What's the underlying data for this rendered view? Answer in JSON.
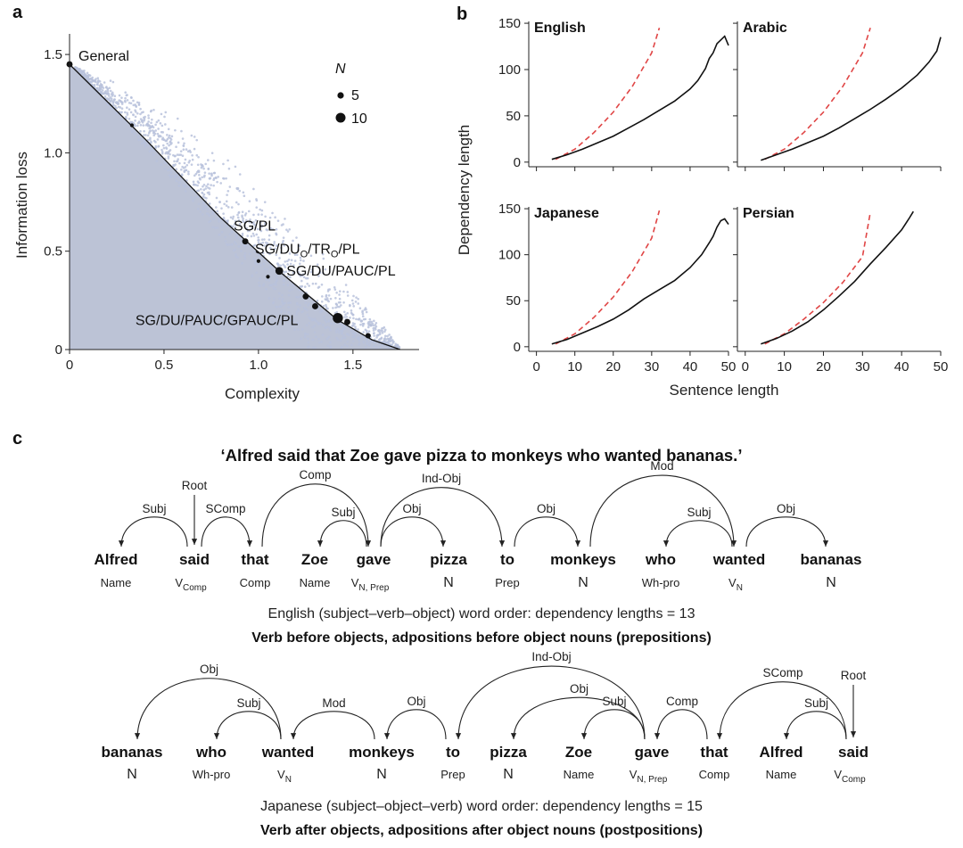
{
  "panel_labels": {
    "a": "a",
    "b": "b",
    "c": "c"
  },
  "colors": {
    "frontier_fill": "#bcc3d6",
    "scatter": "#b8c2dc",
    "line": "#111111",
    "dashed": "#e04646"
  },
  "chart_data": [
    {
      "id": "panel-a",
      "type": "scatter",
      "xlabel": "Complexity",
      "ylabel": "Information loss",
      "xlim": [
        0,
        1.85
      ],
      "ylim": [
        0,
        1.65
      ],
      "xticks": [
        0,
        0.5,
        1,
        1.5
      ],
      "xtick_labels": [
        "0",
        "0.5",
        "1.0",
        "1.5"
      ],
      "yticks": [
        0,
        0.5,
        1,
        1.5
      ],
      "ytick_labels": [
        "0",
        "0.5",
        "1.0",
        "1.5"
      ],
      "frontier": [
        [
          0,
          1.45
        ],
        [
          0.4,
          1.07
        ],
        [
          0.8,
          0.67
        ],
        [
          1.12,
          0.39
        ],
        [
          1.42,
          0.15
        ],
        [
          1.6,
          0.05
        ],
        [
          1.75,
          0.0
        ]
      ],
      "optimal_points": [
        {
          "x": 0,
          "y": 1.45,
          "n": 5
        },
        {
          "x": 0.33,
          "y": 1.14,
          "n": 2
        },
        {
          "x": 0.93,
          "y": 0.55,
          "n": 5
        },
        {
          "x": 1.0,
          "y": 0.45,
          "n": 2
        },
        {
          "x": 1.05,
          "y": 0.37,
          "n": 2
        },
        {
          "x": 1.11,
          "y": 0.4,
          "n": 7
        },
        {
          "x": 1.25,
          "y": 0.27,
          "n": 5
        },
        {
          "x": 1.3,
          "y": 0.22,
          "n": 5
        },
        {
          "x": 1.42,
          "y": 0.16,
          "n": 10
        },
        {
          "x": 1.47,
          "y": 0.14,
          "n": 5
        },
        {
          "x": 1.58,
          "y": 0.07,
          "n": 4
        }
      ],
      "annotations": [
        {
          "text": "General",
          "x": 0,
          "y": 1.45
        },
        {
          "text": "SG/PL",
          "x": 0.93,
          "y": 0.55
        },
        {
          "text": "SG/DUO/TRO/PL",
          "x": 1.0,
          "y": 0.45
        },
        {
          "text": "SG/DU/PAUC/PL",
          "x": 1.11,
          "y": 0.4
        },
        {
          "text": "SG/DU/PAUC/GPAUC/PL",
          "x": 1.42,
          "y": 0.16
        }
      ],
      "legend": {
        "title": "N",
        "entries": [
          {
            "label": "5",
            "n": 5
          },
          {
            "label": "10",
            "n": 10
          }
        ],
        "placement": "top-right"
      }
    },
    {
      "id": "panel-b",
      "type": "line",
      "xlabel": "Sentence length",
      "ylabel": "Dependency length",
      "xlim": [
        -2,
        50
      ],
      "ylim": [
        -5,
        152
      ],
      "xticks": [
        0,
        10,
        20,
        30,
        40,
        50
      ],
      "yticks": [
        0,
        50,
        100,
        150
      ],
      "panels": [
        {
          "title": "English",
          "observed": [
            [
              4,
              3
            ],
            [
              8,
              8
            ],
            [
              12,
              14
            ],
            [
              16,
              21
            ],
            [
              20,
              28
            ],
            [
              24,
              37
            ],
            [
              28,
              46
            ],
            [
              32,
              56
            ],
            [
              36,
              66
            ],
            [
              40,
              79
            ],
            [
              42,
              88
            ],
            [
              44,
              101
            ],
            [
              45,
              112
            ],
            [
              46,
              118
            ],
            [
              47,
              128
            ],
            [
              48,
              132
            ],
            [
              49,
              136
            ],
            [
              50,
              126
            ]
          ],
          "baseline": [
            [
              5,
              3
            ],
            [
              10,
              14
            ],
            [
              15,
              32
            ],
            [
              20,
              54
            ],
            [
              25,
              82
            ],
            [
              30,
              118
            ],
            [
              32,
              145
            ]
          ]
        },
        {
          "title": "Arabic",
          "observed": [
            [
              4,
              2
            ],
            [
              8,
              8
            ],
            [
              12,
              14
            ],
            [
              16,
              21
            ],
            [
              20,
              28
            ],
            [
              24,
              37
            ],
            [
              28,
              47
            ],
            [
              32,
              57
            ],
            [
              36,
              68
            ],
            [
              40,
              80
            ],
            [
              44,
              94
            ],
            [
              47,
              108
            ],
            [
              49,
              120
            ],
            [
              50,
              135
            ]
          ],
          "baseline": [
            [
              5,
              3
            ],
            [
              10,
              14
            ],
            [
              15,
              32
            ],
            [
              20,
              54
            ],
            [
              25,
              82
            ],
            [
              30,
              118
            ],
            [
              32,
              145
            ]
          ]
        },
        {
          "title": "Japanese",
          "observed": [
            [
              4,
              3
            ],
            [
              8,
              8
            ],
            [
              12,
              15
            ],
            [
              16,
              22
            ],
            [
              20,
              30
            ],
            [
              24,
              40
            ],
            [
              28,
              52
            ],
            [
              32,
              62
            ],
            [
              36,
              72
            ],
            [
              40,
              86
            ],
            [
              43,
              100
            ],
            [
              45,
              113
            ],
            [
              46,
              120
            ],
            [
              47,
              130
            ],
            [
              48,
              137
            ],
            [
              49,
              139
            ],
            [
              50,
              133
            ]
          ],
          "baseline": [
            [
              5,
              3
            ],
            [
              10,
              14
            ],
            [
              15,
              32
            ],
            [
              20,
              54
            ],
            [
              25,
              82
            ],
            [
              30,
              118
            ],
            [
              32,
              148
            ]
          ]
        },
        {
          "title": "Persian",
          "observed": [
            [
              4,
              3
            ],
            [
              8,
              9
            ],
            [
              12,
              17
            ],
            [
              16,
              27
            ],
            [
              20,
              40
            ],
            [
              24,
              55
            ],
            [
              28,
              71
            ],
            [
              32,
              90
            ],
            [
              36,
              108
            ],
            [
              40,
              127
            ],
            [
              42,
              140
            ],
            [
              43,
              147
            ]
          ],
          "baseline": [
            [
              5,
              3
            ],
            [
              10,
              14
            ],
            [
              15,
              30
            ],
            [
              20,
              48
            ],
            [
              25,
              70
            ],
            [
              30,
              98
            ],
            [
              32,
              146
            ]
          ]
        }
      ]
    }
  ],
  "panel_c": {
    "sentence": "‘Alfred said that Zoe gave pizza to monkeys who wanted bananas.’",
    "english": {
      "words": [
        {
          "word": "Alfred",
          "pos": "Name",
          "sub": ""
        },
        {
          "word": "said",
          "pos": "V",
          "sub": "Comp"
        },
        {
          "word": "that",
          "pos": "Comp",
          "sub": ""
        },
        {
          "word": "Zoe",
          "pos": "Name",
          "sub": ""
        },
        {
          "word": "gave",
          "pos": "V",
          "sub": "N, Prep"
        },
        {
          "word": "pizza",
          "pos": "N",
          "sub": ""
        },
        {
          "word": "to",
          "pos": "Prep",
          "sub": ""
        },
        {
          "word": "monkeys",
          "pos": "N",
          "sub": ""
        },
        {
          "word": "who",
          "pos": "Wh-pro",
          "sub": ""
        },
        {
          "word": "wanted",
          "pos": "V",
          "sub": "N"
        },
        {
          "word": "bananas",
          "pos": "N",
          "sub": ""
        }
      ],
      "arcs": [
        {
          "label": "Subj",
          "from": 1,
          "to": 0
        },
        {
          "label": "SComp",
          "from": 1,
          "to": 2
        },
        {
          "label": "Comp",
          "from": 2,
          "to": 4
        },
        {
          "label": "Subj",
          "from": 4,
          "to": 3
        },
        {
          "label": "Ind-Obj",
          "from": 4,
          "to": 6
        },
        {
          "label": "Obj",
          "from": 4,
          "to": 5
        },
        {
          "label": "Obj",
          "from": 6,
          "to": 7
        },
        {
          "label": "Mod",
          "from": 7,
          "to": 9
        },
        {
          "label": "Subj",
          "from": 9,
          "to": 8
        },
        {
          "label": "Obj",
          "from": 9,
          "to": 10
        }
      ],
      "root": {
        "label": "Root",
        "word": 1
      },
      "caption": "English (subject–verb–object) word order: dependency lengths = 13",
      "caption_bold": "Verb before objects, adpositions before object nouns (prepositions)"
    },
    "japanese": {
      "words": [
        {
          "word": "bananas",
          "pos": "N",
          "sub": ""
        },
        {
          "word": "who",
          "pos": "Wh-pro",
          "sub": ""
        },
        {
          "word": "wanted",
          "pos": "V",
          "sub": "N"
        },
        {
          "word": "monkeys",
          "pos": "N",
          "sub": ""
        },
        {
          "word": "to",
          "pos": "Prep",
          "sub": ""
        },
        {
          "word": "pizza",
          "pos": "N",
          "sub": ""
        },
        {
          "word": "Zoe",
          "pos": "Name",
          "sub": ""
        },
        {
          "word": "gave",
          "pos": "V",
          "sub": "N, Prep"
        },
        {
          "word": "that",
          "pos": "Comp",
          "sub": ""
        },
        {
          "word": "Alfred",
          "pos": "Name",
          "sub": ""
        },
        {
          "word": "said",
          "pos": "V",
          "sub": "Comp"
        }
      ],
      "arcs": [
        {
          "label": "Obj",
          "from": 2,
          "to": 0
        },
        {
          "label": "Subj",
          "from": 2,
          "to": 1
        },
        {
          "label": "Mod",
          "from": 3,
          "to": 2
        },
        {
          "label": "Obj",
          "from": 4,
          "to": 3
        },
        {
          "label": "Ind-Obj",
          "from": 7,
          "to": 4
        },
        {
          "label": "Obj",
          "from": 7,
          "to": 5
        },
        {
          "label": "Subj",
          "from": 7,
          "to": 6
        },
        {
          "label": "Comp",
          "from": 8,
          "to": 7
        },
        {
          "label": "SComp",
          "from": 10,
          "to": 8
        },
        {
          "label": "Subj",
          "from": 10,
          "to": 9
        }
      ],
      "root": {
        "label": "Root",
        "word": 10
      },
      "caption": "Japanese (subject–object–verb) word order: dependency lengths = 15",
      "caption_bold": "Verb after objects, adpositions after object nouns (postpositions)"
    }
  }
}
